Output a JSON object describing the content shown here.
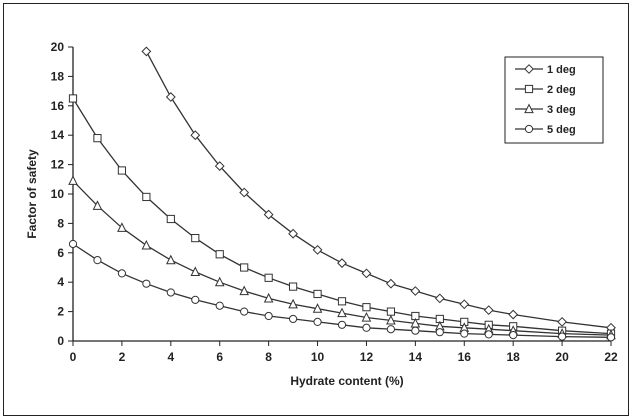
{
  "chart_data": {
    "type": "line",
    "title": "",
    "xlabel": "Hydrate content (%)",
    "ylabel": "Factor of safety",
    "xlim": [
      0,
      22
    ],
    "ylim": [
      0,
      20
    ],
    "xticks": [
      "0",
      "2",
      "4",
      "6",
      "8",
      "10",
      "12",
      "14",
      "16",
      "18",
      "20",
      "22"
    ],
    "yticks": [
      "0",
      "2",
      "4",
      "6",
      "8",
      "10",
      "12",
      "14",
      "16",
      "18",
      "20"
    ],
    "grid": false,
    "legend_position": "top-right",
    "series": [
      {
        "name": "1 deg",
        "marker": "diamond",
        "x": [
          3,
          4,
          5,
          6,
          7,
          8,
          9,
          10,
          11,
          12,
          13,
          14,
          15,
          16,
          17,
          18,
          20,
          22
        ],
        "y": [
          19.7,
          16.6,
          14.0,
          11.9,
          10.1,
          8.6,
          7.3,
          6.2,
          5.3,
          4.6,
          3.9,
          3.4,
          2.9,
          2.5,
          2.1,
          1.8,
          1.3,
          0.9
        ]
      },
      {
        "name": "2 deg",
        "marker": "square",
        "x": [
          0,
          1,
          2,
          3,
          4,
          5,
          6,
          7,
          8,
          9,
          10,
          11,
          12,
          13,
          14,
          15,
          16,
          17,
          18,
          20,
          22
        ],
        "y": [
          16.5,
          13.8,
          11.6,
          9.8,
          8.3,
          7.0,
          5.9,
          5.0,
          4.3,
          3.7,
          3.2,
          2.7,
          2.3,
          2.0,
          1.7,
          1.5,
          1.3,
          1.1,
          1.0,
          0.7,
          0.5
        ]
      },
      {
        "name": "3 deg",
        "marker": "triangle",
        "x": [
          0,
          1,
          2,
          3,
          4,
          5,
          6,
          7,
          8,
          9,
          10,
          11,
          12,
          13,
          14,
          15,
          16,
          17,
          18,
          20,
          22
        ],
        "y": [
          10.9,
          9.2,
          7.7,
          6.5,
          5.5,
          4.7,
          4.0,
          3.4,
          2.9,
          2.5,
          2.2,
          1.9,
          1.6,
          1.4,
          1.2,
          1.0,
          0.9,
          0.8,
          0.7,
          0.5,
          0.4
        ]
      },
      {
        "name": "5 deg",
        "marker": "circle",
        "x": [
          0,
          1,
          2,
          3,
          4,
          5,
          6,
          7,
          8,
          9,
          10,
          11,
          12,
          13,
          14,
          15,
          16,
          17,
          18,
          20,
          22
        ],
        "y": [
          6.6,
          5.5,
          4.6,
          3.9,
          3.3,
          2.8,
          2.4,
          2.0,
          1.7,
          1.5,
          1.3,
          1.1,
          0.9,
          0.8,
          0.7,
          0.6,
          0.5,
          0.45,
          0.4,
          0.3,
          0.25
        ]
      }
    ],
    "colors": {
      "line": "#333333",
      "marker_fill": "#ffffff",
      "axis": "#222222"
    }
  }
}
